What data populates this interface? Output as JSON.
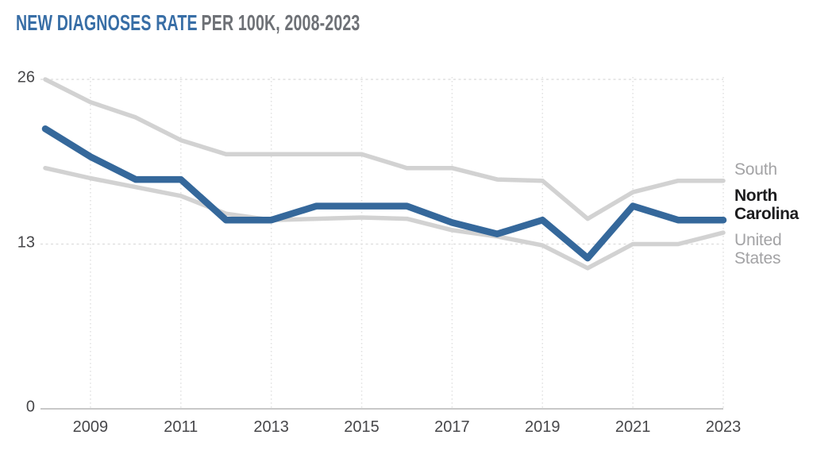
{
  "title": {
    "emphasis": "NEW DIAGNOSES RATE",
    "rest": "PER 100K, 2008-2023"
  },
  "colors": {
    "title_accent": "#386EA6",
    "title_gray": "#6E7176",
    "nc_line_blue": "#35689B",
    "gray_line": "#D2D2D2",
    "axis_text": "#47474A",
    "legend_gray": "#A3A3A5",
    "legend_black": "#1C1C1E",
    "grid": "#E0E0E0",
    "baseline": "#C8C8C8"
  },
  "chart_data": {
    "type": "line",
    "title": "NEW DIAGNOSES RATE PER 100K, 2008-2023",
    "xlabel": "",
    "ylabel": "",
    "x": [
      2008,
      2009,
      2010,
      2011,
      2012,
      2013,
      2014,
      2015,
      2016,
      2017,
      2018,
      2019,
      2020,
      2021,
      2022,
      2023
    ],
    "series": [
      {
        "name": "South",
        "color": "#D2D2D2",
        "values": [
          26.0,
          24.2,
          23.0,
          21.2,
          20.1,
          20.1,
          20.1,
          20.1,
          19.0,
          19.0,
          18.1,
          18.0,
          15.0,
          17.1,
          18.0,
          18.0
        ]
      },
      {
        "name": "North Carolina",
        "color": "#35689B",
        "values": [
          22.1,
          19.9,
          18.1,
          18.1,
          14.9,
          14.9,
          16.0,
          16.0,
          16.0,
          14.7,
          13.8,
          14.9,
          11.9,
          16.0,
          14.9,
          14.9
        ]
      },
      {
        "name": "United States",
        "color": "#D2D2D2",
        "values": [
          19.0,
          18.2,
          17.5,
          16.8,
          15.4,
          14.9,
          15.0,
          15.1,
          15.0,
          14.1,
          13.6,
          12.9,
          11.1,
          13.0,
          13.0,
          13.9
        ]
      }
    ],
    "ylim": [
      0,
      26
    ],
    "y_ticks": [
      26,
      13,
      0
    ],
    "x_tick_years": [
      2009,
      2011,
      2013,
      2015,
      2017,
      2019,
      2021,
      2023
    ],
    "x_tick_labels": [
      "2009",
      "2011",
      "2013",
      "2015",
      "2017",
      "2019",
      "2021",
      "2023"
    ],
    "grid": "dashed, vertical at odd years and horizontal at 26 and 13, solid baseline at 0",
    "legend_position": "right"
  }
}
